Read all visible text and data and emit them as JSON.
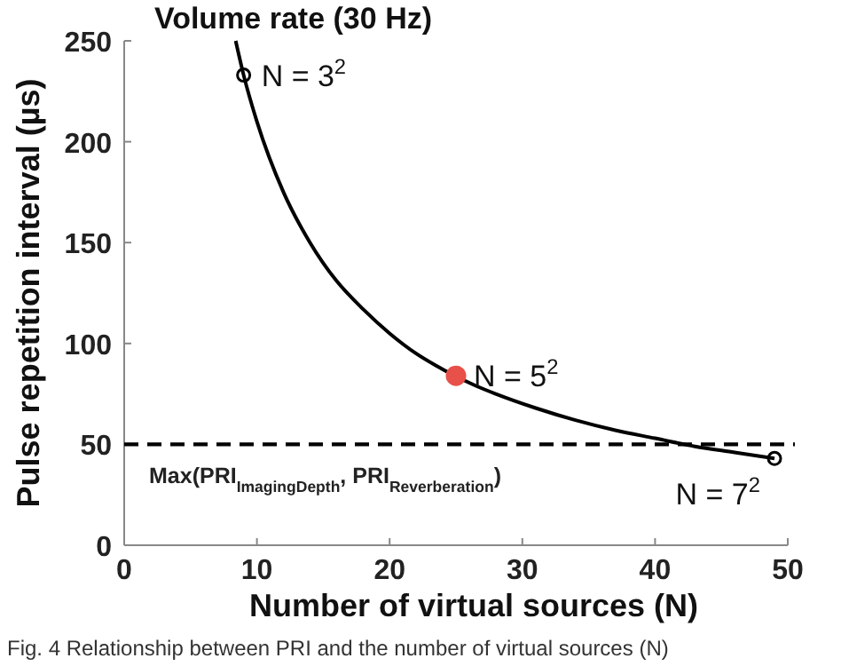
{
  "chart_data": {
    "type": "line",
    "title": "Volume rate (30 Hz)",
    "xlabel": "Number of virtual sources (N)",
    "ylabel": "Pulse repetition interval (µs)",
    "xlim": [
      0,
      50
    ],
    "xticks": [
      0,
      10,
      20,
      30,
      40,
      50
    ],
    "ylim": [
      0,
      250
    ],
    "yticks": [
      0,
      50,
      100,
      150,
      200,
      250
    ],
    "grid": false,
    "series": [
      {
        "color": "#000000",
        "marker": "none",
        "line_style": "solid",
        "x": [
          8.4,
          9,
          10,
          12,
          14,
          16,
          18,
          20,
          22,
          23.5,
          26.5,
          28,
          31,
          34,
          37,
          40,
          43,
          46,
          49
        ],
        "values": [
          250,
          233,
          210,
          175,
          150,
          131,
          117,
          105,
          95,
          89,
          79,
          75,
          68,
          62,
          57,
          53,
          49,
          46,
          43
        ]
      },
      {
        "type": "scatter",
        "color": "#000000",
        "marker": "circle",
        "x": [
          9,
          49
        ],
        "values": [
          233,
          43
        ]
      },
      {
        "type": "scatter",
        "color": "#e8504a",
        "marker": "circle",
        "x": [
          25
        ],
        "values": [
          84
        ]
      }
    ],
    "ref_lines": [
      {
        "axis": "y",
        "value": 50,
        "label": "Max(PRI$_{ImagingDepth}$, PRI$_{Reverberation}$)",
        "color": "#000000",
        "line_style": "dashed"
      }
    ],
    "annotations": [
      {
        "text": "N = 3$^{2}$",
        "x": 9,
        "y": 233
      },
      {
        "text": "N = 5$^{2}$",
        "x": 25,
        "y": 84
      },
      {
        "text": "N = 7$^{2}$",
        "x": 49,
        "y": 43
      },
      "Fig. 4   Relationship between PRI and the number of virtual sources (N)"
    ]
  }
}
